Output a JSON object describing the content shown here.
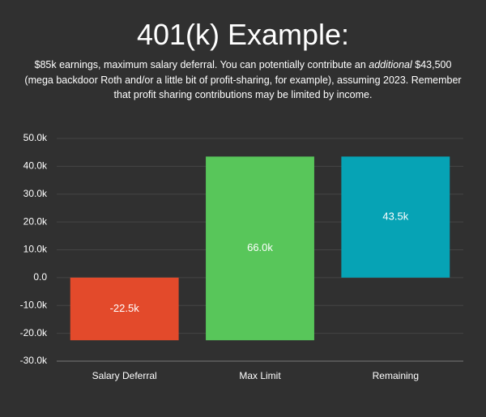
{
  "chart_data": {
    "type": "waterfall",
    "title": "401(k) Example:",
    "subtitle": [
      "$85k earnings, maximum salary deferral. You can potentially contribute an ",
      "additional",
      " $43,500 (mega backdoor Roth and/or a little bit of profit-sharing, for example), assuming 2023. Remember that profit sharing contributions may be limited by income."
    ],
    "categories": [
      "Salary Deferral",
      "Max Limit",
      "Remaining"
    ],
    "measures": [
      "relative",
      "relative",
      "total"
    ],
    "values": [
      -22.5,
      66.0,
      43.5
    ],
    "value_labels": [
      "-22.5k",
      "66.0k",
      "43.5k"
    ],
    "colors": [
      "#e34a2b",
      "#58c65a",
      "#06a3b5"
    ],
    "ylim": [
      -30,
      50
    ],
    "yticks": [
      {
        "value": -30,
        "label": "-30.0k"
      },
      {
        "value": -20,
        "label": "-20.0k"
      },
      {
        "value": -10,
        "label": "-10.0k"
      },
      {
        "value": 0,
        "label": "0.0"
      },
      {
        "value": 10,
        "label": "10.0k"
      },
      {
        "value": 20,
        "label": "20.0k"
      },
      {
        "value": 30,
        "label": "30.0k"
      },
      {
        "value": 40,
        "label": "40.0k"
      },
      {
        "value": 50,
        "label": "50.0k"
      }
    ],
    "grid": true
  }
}
